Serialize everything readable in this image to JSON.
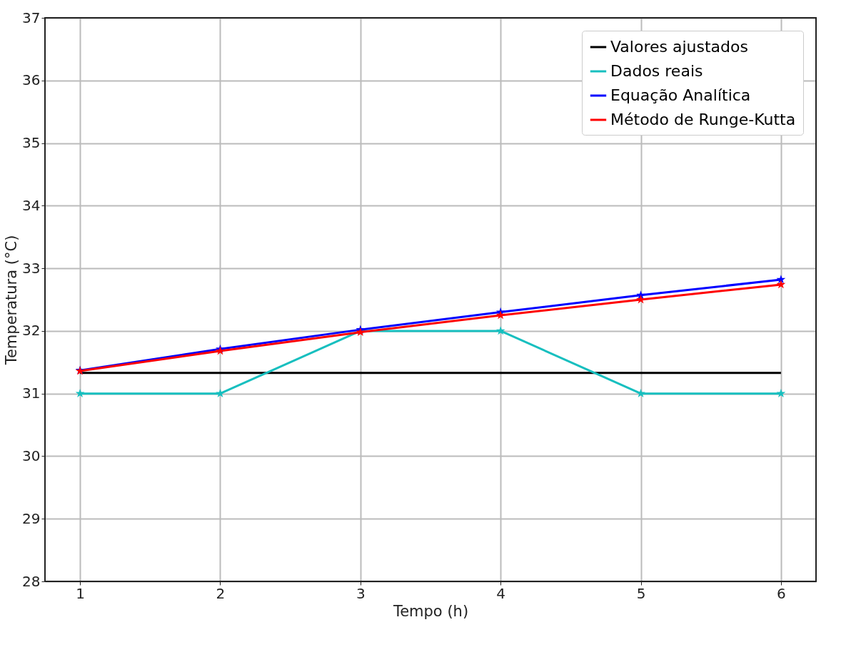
{
  "chart_data": {
    "type": "line",
    "xlabel": "Tempo (h)",
    "ylabel": "Temperatura (°C)",
    "x": [
      1,
      2,
      3,
      4,
      5,
      6
    ],
    "series": [
      {
        "name": "Valores ajustados",
        "color": "#000000",
        "marker": "none",
        "values": [
          31.33,
          31.33,
          31.33,
          31.33,
          31.33,
          31.33
        ]
      },
      {
        "name": "Dados reais",
        "color": "#17bfbf",
        "values": [
          31,
          31,
          32,
          32,
          31,
          31
        ]
      },
      {
        "name": "Equação Analítica",
        "color": "#0000ff",
        "values": [
          31.37,
          31.71,
          32.02,
          32.3,
          32.57,
          32.82
        ]
      },
      {
        "name": "Método de Runge-Kutta",
        "color": "#ff0000",
        "values": [
          31.36,
          31.68,
          31.98,
          32.25,
          32.5,
          32.74
        ]
      }
    ],
    "xlim": [
      0.75,
      6.25
    ],
    "xticks": [
      1,
      2,
      3,
      4,
      5,
      6
    ],
    "ylim": [
      28,
      37
    ],
    "yticks": [
      28,
      29,
      30,
      31,
      32,
      33,
      34,
      35,
      36,
      37
    ],
    "grid": true,
    "legend": "top right",
    "marker": "star",
    "line_style": "solid"
  }
}
